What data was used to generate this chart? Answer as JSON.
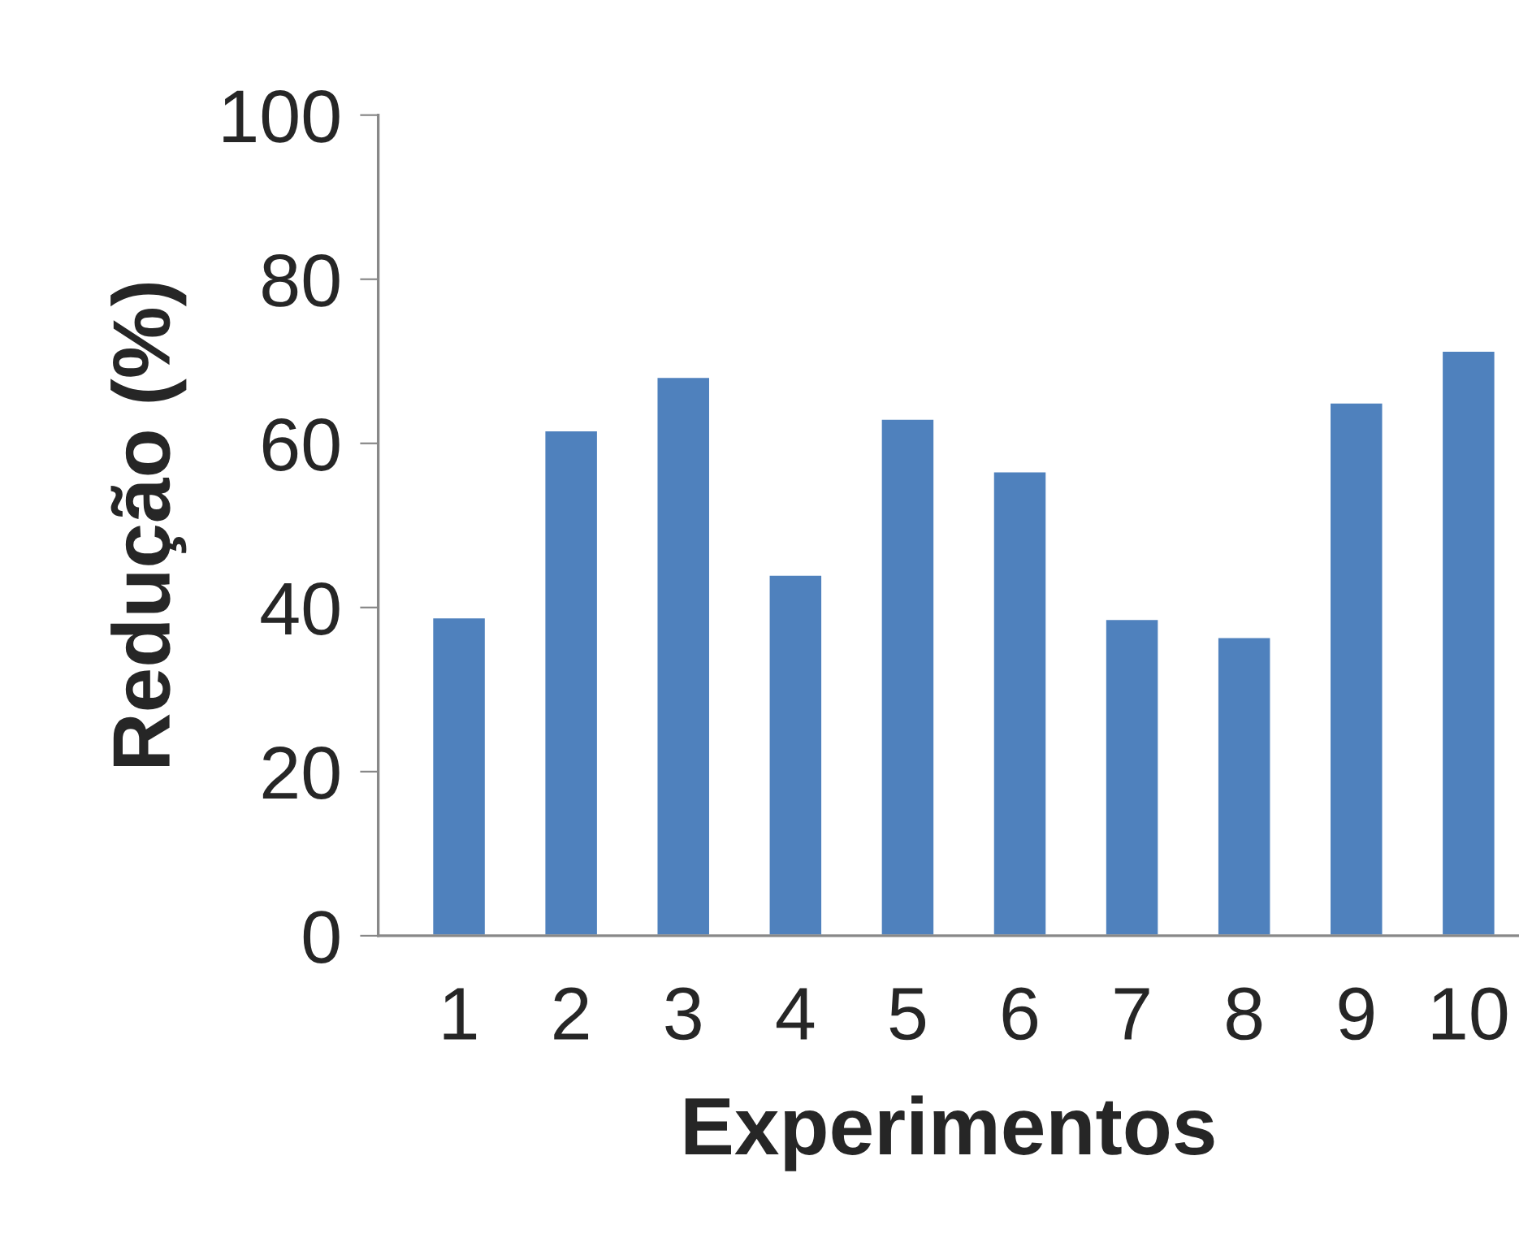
{
  "chart_data": {
    "type": "bar",
    "xlabel": "Experimentos",
    "ylabel": "Redução (%)",
    "categories": [
      "1",
      "2",
      "3",
      "4",
      "5",
      "6",
      "7",
      "8",
      "9",
      "10"
    ],
    "values": [
      38.8,
      61.6,
      68.1,
      44.0,
      63.0,
      56.6,
      38.6,
      36.4,
      65.0,
      71.3
    ],
    "color": "#4f81bd",
    "ylim": [
      0,
      100
    ],
    "yticks": [
      0,
      20,
      40,
      60,
      80,
      100
    ],
    "grid": false,
    "legend": false
  }
}
